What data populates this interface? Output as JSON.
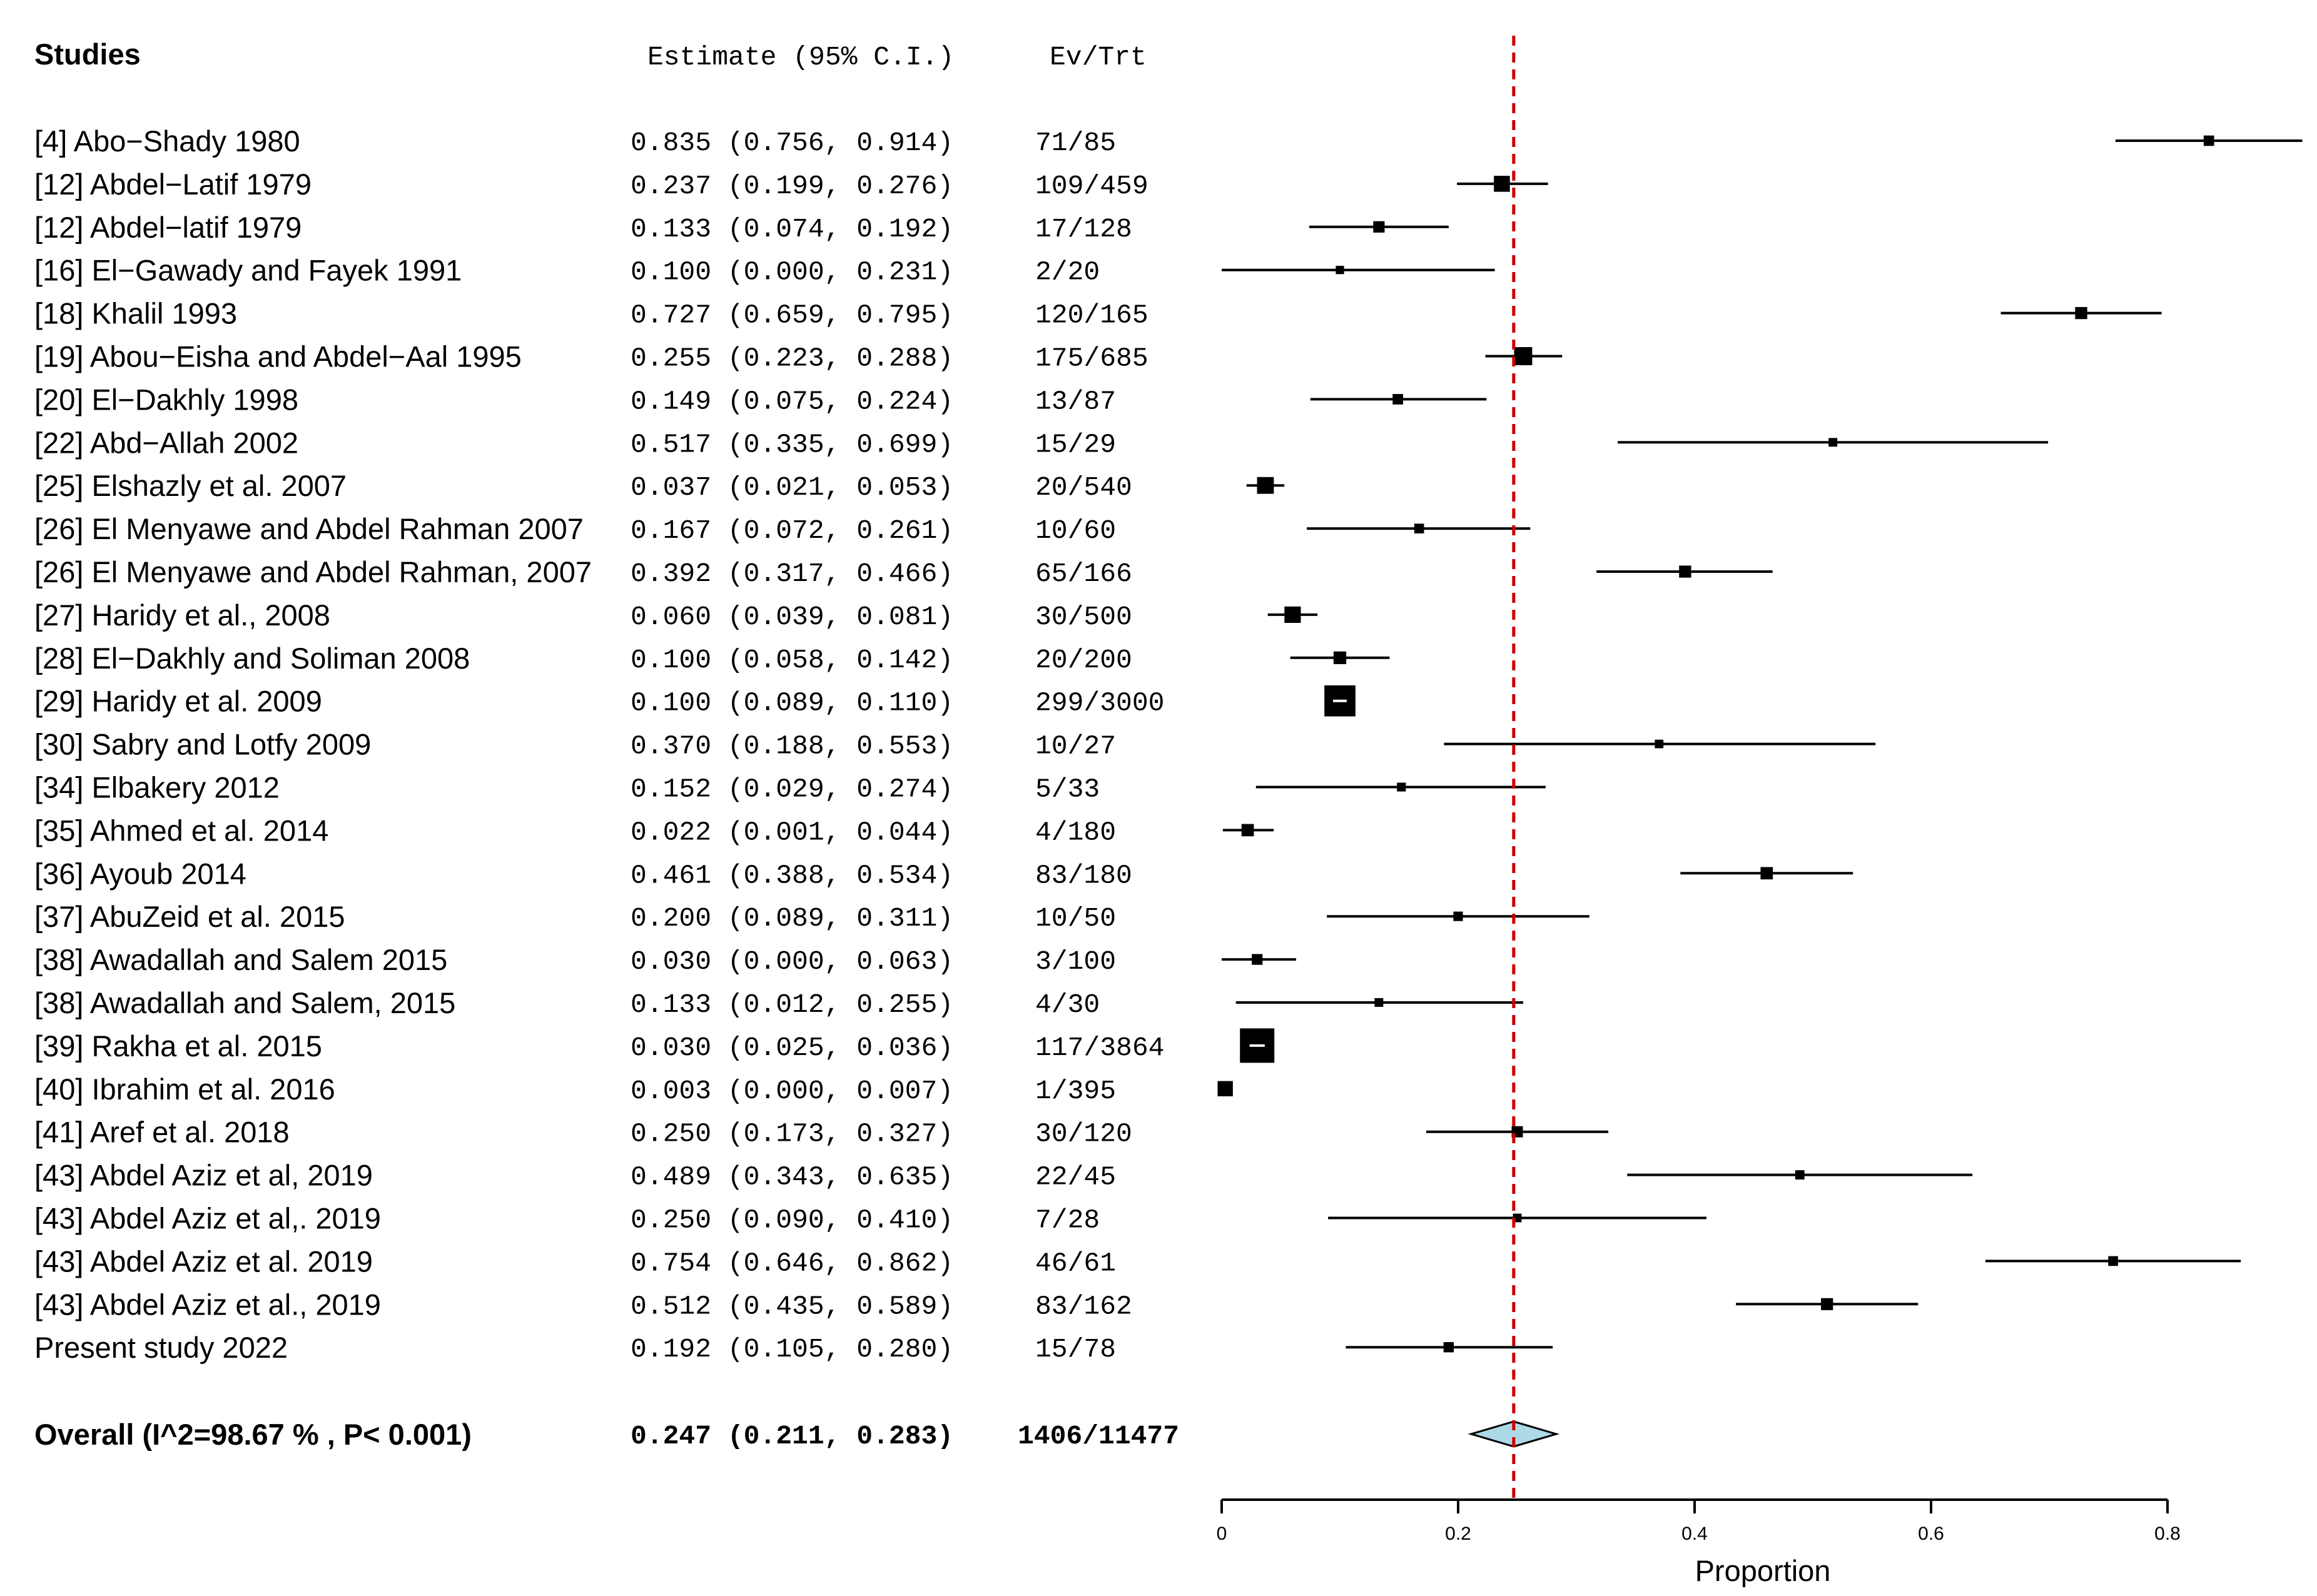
{
  "chart_data": {
    "type": "forest",
    "headers": {
      "studies": "Studies",
      "estimate": "Estimate (95% C.I.)",
      "events": "Ev/Trt"
    },
    "studies": [
      {
        "label": "[4] Abo−Shady 1980",
        "est": 0.835,
        "lo": 0.756,
        "hi": 0.914,
        "ci_text": "0.835 (0.756, 0.914)",
        "ev": "71/85",
        "n": 85
      },
      {
        "label": "[12] Abdel−Latif 1979",
        "est": 0.237,
        "lo": 0.199,
        "hi": 0.276,
        "ci_text": "0.237 (0.199, 0.276)",
        "ev": "109/459",
        "n": 459
      },
      {
        "label": "[12] Abdel−latif 1979",
        "est": 0.133,
        "lo": 0.074,
        "hi": 0.192,
        "ci_text": "0.133 (0.074, 0.192)",
        "ev": "17/128",
        "n": 128
      },
      {
        "label": "[16] El−Gawady and Fayek 1991",
        "est": 0.1,
        "lo": 0.0,
        "hi": 0.231,
        "ci_text": "0.100 (0.000, 0.231)",
        "ev": "2/20",
        "n": 20
      },
      {
        "label": "[18] Khalil 1993",
        "est": 0.727,
        "lo": 0.659,
        "hi": 0.795,
        "ci_text": "0.727 (0.659, 0.795)",
        "ev": "120/165",
        "n": 165
      },
      {
        "label": "[19] Abou−Eisha and Abdel−Aal 1995",
        "est": 0.255,
        "lo": 0.223,
        "hi": 0.288,
        "ci_text": "0.255 (0.223, 0.288)",
        "ev": "175/685",
        "n": 685
      },
      {
        "label": "[20] El−Dakhly 1998",
        "est": 0.149,
        "lo": 0.075,
        "hi": 0.224,
        "ci_text": "0.149 (0.075, 0.224)",
        "ev": "13/87",
        "n": 87
      },
      {
        "label": "[22] Abd−Allah 2002",
        "est": 0.517,
        "lo": 0.335,
        "hi": 0.699,
        "ci_text": "0.517 (0.335, 0.699)",
        "ev": "15/29",
        "n": 29
      },
      {
        "label": "[25] Elshazly et al. 2007",
        "est": 0.037,
        "lo": 0.021,
        "hi": 0.053,
        "ci_text": "0.037 (0.021, 0.053)",
        "ev": "20/540",
        "n": 540
      },
      {
        "label": "[26] El Menyawe and Abdel Rahman 2007",
        "est": 0.167,
        "lo": 0.072,
        "hi": 0.261,
        "ci_text": "0.167 (0.072, 0.261)",
        "ev": "10/60",
        "n": 60
      },
      {
        "label": "[26] El Menyawe and Abdel Rahman, 2007",
        "est": 0.392,
        "lo": 0.317,
        "hi": 0.466,
        "ci_text": "0.392 (0.317, 0.466)",
        "ev": "65/166",
        "n": 166
      },
      {
        "label": "[27] Haridy et al., 2008",
        "est": 0.06,
        "lo": 0.039,
        "hi": 0.081,
        "ci_text": "0.060 (0.039, 0.081)",
        "ev": "30/500",
        "n": 500
      },
      {
        "label": "[28] El−Dakhly and Soliman 2008",
        "est": 0.1,
        "lo": 0.058,
        "hi": 0.142,
        "ci_text": "0.100 (0.058, 0.142)",
        "ev": "20/200",
        "n": 200
      },
      {
        "label": "[29] Haridy et al. 2009",
        "est": 0.1,
        "lo": 0.089,
        "hi": 0.11,
        "ci_text": "0.100 (0.089, 0.110)",
        "ev": "299/3000",
        "n": 3000
      },
      {
        "label": "[30] Sabry and Lotfy 2009",
        "est": 0.37,
        "lo": 0.188,
        "hi": 0.553,
        "ci_text": "0.370 (0.188, 0.553)",
        "ev": "10/27",
        "n": 27
      },
      {
        "label": "[34] Elbakery 2012",
        "est": 0.152,
        "lo": 0.029,
        "hi": 0.274,
        "ci_text": "0.152 (0.029, 0.274)",
        "ev": "5/33",
        "n": 33
      },
      {
        "label": "[35] Ahmed et al. 2014",
        "est": 0.022,
        "lo": 0.001,
        "hi": 0.044,
        "ci_text": "0.022 (0.001, 0.044)",
        "ev": "4/180",
        "n": 180
      },
      {
        "label": "[36] Ayoub 2014",
        "est": 0.461,
        "lo": 0.388,
        "hi": 0.534,
        "ci_text": "0.461 (0.388, 0.534)",
        "ev": "83/180",
        "n": 180
      },
      {
        "label": "[37] AbuZeid et al. 2015",
        "est": 0.2,
        "lo": 0.089,
        "hi": 0.311,
        "ci_text": "0.200 (0.089, 0.311)",
        "ev": "10/50",
        "n": 50
      },
      {
        "label": "[38] Awadallah and Salem 2015",
        "est": 0.03,
        "lo": 0.0,
        "hi": 0.063,
        "ci_text": "0.030 (0.000, 0.063)",
        "ev": "3/100",
        "n": 100
      },
      {
        "label": "[38] Awadallah and Salem, 2015",
        "est": 0.133,
        "lo": 0.012,
        "hi": 0.255,
        "ci_text": "0.133 (0.012, 0.255)",
        "ev": "4/30",
        "n": 30
      },
      {
        "label": "[39] Rakha et al. 2015",
        "est": 0.03,
        "lo": 0.025,
        "hi": 0.036,
        "ci_text": "0.030 (0.025, 0.036)",
        "ev": "117/3864",
        "n": 3864
      },
      {
        "label": "[40] Ibrahim et al. 2016",
        "est": 0.003,
        "lo": 0.0,
        "hi": 0.007,
        "ci_text": "0.003 (0.000, 0.007)",
        "ev": "1/395",
        "n": 395
      },
      {
        "label": "[41] Aref et al. 2018",
        "est": 0.25,
        "lo": 0.173,
        "hi": 0.327,
        "ci_text": "0.250 (0.173, 0.327)",
        "ev": "30/120",
        "n": 120
      },
      {
        "label": "[43] Abdel Aziz et al, 2019",
        "est": 0.489,
        "lo": 0.343,
        "hi": 0.635,
        "ci_text": "0.489 (0.343, 0.635)",
        "ev": "22/45",
        "n": 45
      },
      {
        "label": "[43] Abdel Aziz et al,. 2019",
        "est": 0.25,
        "lo": 0.09,
        "hi": 0.41,
        "ci_text": "0.250 (0.090, 0.410)",
        "ev": "7/28",
        "n": 28
      },
      {
        "label": "[43] Abdel Aziz et al. 2019",
        "est": 0.754,
        "lo": 0.646,
        "hi": 0.862,
        "ci_text": "0.754 (0.646, 0.862)",
        "ev": "46/61",
        "n": 61
      },
      {
        "label": "[43] Abdel Aziz et al., 2019",
        "est": 0.512,
        "lo": 0.435,
        "hi": 0.589,
        "ci_text": "0.512 (0.435, 0.589)",
        "ev": "83/162",
        "n": 162
      },
      {
        "label": "Present study 2022",
        "est": 0.192,
        "lo": 0.105,
        "hi": 0.28,
        "ci_text": "0.192 (0.105, 0.280)",
        "ev": "15/78",
        "n": 78
      }
    ],
    "overall": {
      "label": "Overall (I^2=98.67 % , P< 0.001)",
      "est": 0.247,
      "lo": 0.211,
      "hi": 0.283,
      "ci_text": "0.247 (0.211, 0.283)",
      "ev": "1406/11477"
    },
    "xlabel": "Proportion",
    "xlim": [
      0,
      0.8
    ],
    "xticks": [
      0,
      0.2,
      0.4,
      0.6,
      0.8
    ],
    "xtick_labels": [
      "0",
      "0.2",
      "0.4",
      "0.6",
      "0.8"
    ],
    "reference_line": 0.247,
    "colors": {
      "reference_line": "#cc0000",
      "diamond_fill": "#add8e6",
      "marker": "#000000"
    }
  }
}
